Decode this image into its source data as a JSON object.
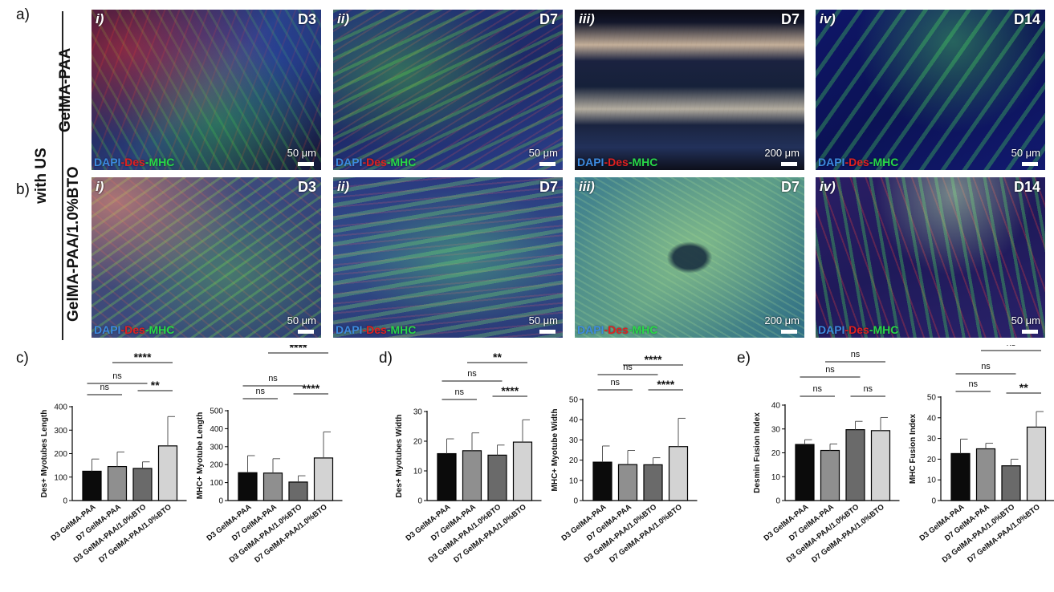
{
  "panel_labels": {
    "a": "a)",
    "b": "b)",
    "c": "c)",
    "d": "d)",
    "e": "e)"
  },
  "side_label": "with US",
  "rows": [
    {
      "label": "GelMA-PAA",
      "panels": [
        {
          "num": "i)",
          "day": "D3",
          "scale": "50 μm",
          "stain": [
            "DAPI",
            "-Des",
            "-MHC"
          ]
        },
        {
          "num": "ii)",
          "day": "D7",
          "scale": "50 μm",
          "stain": [
            "DAPI",
            "-Des",
            "-MHC"
          ]
        },
        {
          "num": "iii)",
          "day": "D7",
          "scale": "200 μm",
          "stain": [
            "DAPI",
            "-Des",
            "-MHC"
          ]
        },
        {
          "num": "iv)",
          "day": "D14",
          "scale": "50 μm",
          "stain": [
            "DAPI",
            "-Des",
            "-MHC"
          ]
        }
      ]
    },
    {
      "label": "GelMA-PAA/1.0%BTO",
      "panels": [
        {
          "num": "i)",
          "day": "D3",
          "scale": "50 μm",
          "stain": [
            "DAPI",
            "-Des",
            "-MHC"
          ]
        },
        {
          "num": "ii)",
          "day": "D7",
          "scale": "50 μm",
          "stain": [
            "DAPI",
            "-Des",
            "-MHC"
          ]
        },
        {
          "num": "iii)",
          "day": "D7",
          "scale": "200 μm",
          "stain": [
            "DAPI",
            "-Des",
            "-MHC"
          ]
        },
        {
          "num": "iv)",
          "day": "D14",
          "scale": "50 μm",
          "stain": [
            "DAPI",
            "-Des",
            "-MHC"
          ]
        }
      ]
    }
  ],
  "colors": {
    "bar_fills": [
      "#0b0b0b",
      "#8f8f8f",
      "#6a6a6a",
      "#d3d3d3"
    ],
    "dapi": "#3d8be0",
    "des": "#e02020",
    "mhc": "#28d848"
  },
  "chart_data": [
    {
      "type": "bar",
      "ylabel": "Des+ Myotubes Length",
      "ylim": [
        0,
        400
      ],
      "yticks": [
        0,
        100,
        200,
        300,
        400
      ],
      "categories": [
        "D3 GelMA-PAA",
        "D7 GelMA-PAA",
        "D3 GelMA-PAA/1.0%BTO",
        "D7 GelMA-PAA/1.0%BTO"
      ],
      "values": [
        125,
        145,
        137,
        233
      ],
      "errors": [
        52,
        62,
        28,
        125
      ],
      "significance": [
        {
          "from": 0,
          "to": 1,
          "label": "ns"
        },
        {
          "from": 2,
          "to": 3,
          "label": "**"
        },
        {
          "from": 0,
          "to": 2,
          "label": "ns"
        },
        {
          "from": 1,
          "to": 3,
          "label": "****"
        }
      ]
    },
    {
      "type": "bar",
      "ylabel": "MHC+ Myotube Length",
      "ylim": [
        0,
        500
      ],
      "yticks": [
        0,
        100,
        200,
        300,
        400,
        500
      ],
      "categories": [
        "D3 GelMA-PAA",
        "D7 GelMA-PAA",
        "D3 GelMA-PAA/1.0%BTO",
        "D7 GelMA-PAA/1.0%BTO"
      ],
      "values": [
        155,
        153,
        103,
        237
      ],
      "errors": [
        95,
        80,
        35,
        145
      ],
      "significance": [
        {
          "from": 0,
          "to": 1,
          "label": "ns"
        },
        {
          "from": 2,
          "to": 3,
          "label": "****"
        },
        {
          "from": 0,
          "to": 2,
          "label": "ns"
        },
        {
          "from": 1,
          "to": 3,
          "label": "****"
        }
      ]
    },
    {
      "type": "bar",
      "ylabel": "Des+ Myotubes Width",
      "ylim": [
        0,
        30
      ],
      "yticks": [
        0,
        10,
        20,
        30
      ],
      "categories": [
        "D3 GelMA-PAA",
        "D7 GelMA-PAA",
        "D3 GelMA-PAA/1.0%BTO",
        "D7 GelMA-PAA/1.0%BTO"
      ],
      "values": [
        15.8,
        16.8,
        15.3,
        19.7
      ],
      "errors": [
        5,
        6,
        3.4,
        7.5
      ],
      "significance": [
        {
          "from": 0,
          "to": 1,
          "label": "ns"
        },
        {
          "from": 2,
          "to": 3,
          "label": "****"
        },
        {
          "from": 0,
          "to": 2,
          "label": "ns"
        },
        {
          "from": 1,
          "to": 3,
          "label": "**"
        }
      ]
    },
    {
      "type": "bar",
      "ylabel": "MHC+ Myotube Width",
      "ylim": [
        0,
        50
      ],
      "yticks": [
        0,
        10,
        20,
        30,
        40,
        50
      ],
      "categories": [
        "D3 GelMA-PAA",
        "D7 GelMA-PAA",
        "D3 GelMA-PAA/1.0%BTO",
        "D7 GelMA-PAA/1.0%BTO"
      ],
      "values": [
        19,
        17.8,
        17.7,
        26.7
      ],
      "errors": [
        8,
        7,
        3.5,
        14
      ],
      "significance": [
        {
          "from": 0,
          "to": 1,
          "label": "ns"
        },
        {
          "from": 2,
          "to": 3,
          "label": "****"
        },
        {
          "from": 0,
          "to": 2,
          "label": "ns"
        },
        {
          "from": 1,
          "to": 3,
          "label": "****"
        }
      ]
    },
    {
      "type": "bar",
      "ylabel": "Desmin Fusion Index",
      "ylim": [
        0,
        40
      ],
      "yticks": [
        0,
        10,
        20,
        30,
        40
      ],
      "categories": [
        "D3 GelMA-PAA",
        "D7 GelMA-PAA",
        "D3 GelMA-PAA/1.0%BTO",
        "D7 GelMA-PAA/1.0%BTO"
      ],
      "values": [
        23.5,
        21,
        29.7,
        29.3
      ],
      "errors": [
        2,
        2.7,
        3.5,
        5.5
      ],
      "significance": [
        {
          "from": 0,
          "to": 1,
          "label": "ns"
        },
        {
          "from": 2,
          "to": 3,
          "label": "ns"
        },
        {
          "from": 0,
          "to": 2,
          "label": "ns"
        },
        {
          "from": 1,
          "to": 3,
          "label": "ns"
        }
      ]
    },
    {
      "type": "bar",
      "ylabel": "MHC Fusion Index",
      "ylim": [
        0,
        50
      ],
      "yticks": [
        0,
        10,
        20,
        30,
        40,
        50
      ],
      "categories": [
        "D3 GelMA-PAA",
        "D7 GelMA-PAA",
        "D3 GelMA-PAA/1.0%BTO",
        "D7 GelMA-PAA/1.0%BTO"
      ],
      "values": [
        22.7,
        25,
        16.8,
        35.5
      ],
      "errors": [
        7,
        2.7,
        3.2,
        7.5
      ],
      "significance": [
        {
          "from": 0,
          "to": 1,
          "label": "ns"
        },
        {
          "from": 2,
          "to": 3,
          "label": "**"
        },
        {
          "from": 0,
          "to": 2,
          "label": "ns"
        },
        {
          "from": 1,
          "to": 3,
          "label": "ns"
        }
      ]
    }
  ]
}
